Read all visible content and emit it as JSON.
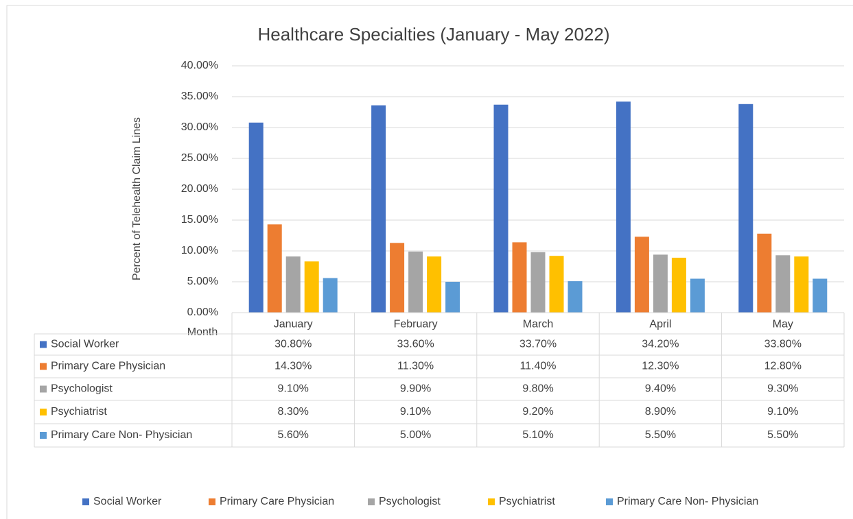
{
  "chart_data": {
    "type": "bar",
    "title": "Healthcare Specialties (January  - May 2022)",
    "y_label": "Percent of Telehealth Claim Lines",
    "x_label": "Month",
    "categories": [
      "January",
      "February",
      "March",
      "April",
      "May"
    ],
    "series": [
      {
        "name": "Social Worker",
        "color": "#4472c4",
        "values": [
          30.8,
          33.6,
          33.7,
          34.2,
          33.8
        ],
        "value_labels": [
          "30.80%",
          "33.60%",
          "33.70%",
          "34.20%",
          "33.80%"
        ]
      },
      {
        "name": "Primary Care Physician",
        "color": "#ed7d31",
        "values": [
          14.3,
          11.3,
          11.4,
          12.3,
          12.8
        ],
        "value_labels": [
          "14.30%",
          "11.30%",
          "11.40%",
          "12.30%",
          "12.80%"
        ]
      },
      {
        "name": "Psychologist",
        "color": "#a5a5a5",
        "values": [
          9.1,
          9.9,
          9.8,
          9.4,
          9.3
        ],
        "value_labels": [
          "9.10%",
          "9.90%",
          "9.80%",
          "9.40%",
          "9.30%"
        ]
      },
      {
        "name": "Psychiatrist",
        "color": "#ffc000",
        "values": [
          8.3,
          9.1,
          9.2,
          8.9,
          9.1
        ],
        "value_labels": [
          "8.30%",
          "9.10%",
          "9.20%",
          "8.90%",
          "9.10%"
        ]
      },
      {
        "name": "Primary Care Non- Physician",
        "color": "#5b9bd5",
        "values": [
          5.6,
          5.0,
          5.1,
          5.5,
          5.5
        ],
        "value_labels": [
          "5.60%",
          "5.00%",
          "5.10%",
          "5.50%",
          "5.50%"
        ]
      }
    ],
    "ylim": [
      0,
      40
    ],
    "yticks": [
      {
        "value": 0,
        "label": "0.00%"
      },
      {
        "value": 5,
        "label": "5.00%"
      },
      {
        "value": 10,
        "label": "10.00%"
      },
      {
        "value": 15,
        "label": "15.00%"
      },
      {
        "value": 20,
        "label": "20.00%"
      },
      {
        "value": 25,
        "label": "25.00%"
      },
      {
        "value": 30,
        "label": "30.00%"
      },
      {
        "value": 35,
        "label": "35.00%"
      },
      {
        "value": 40,
        "label": "40.00%"
      }
    ],
    "grid": true,
    "legend": "bottom"
  }
}
